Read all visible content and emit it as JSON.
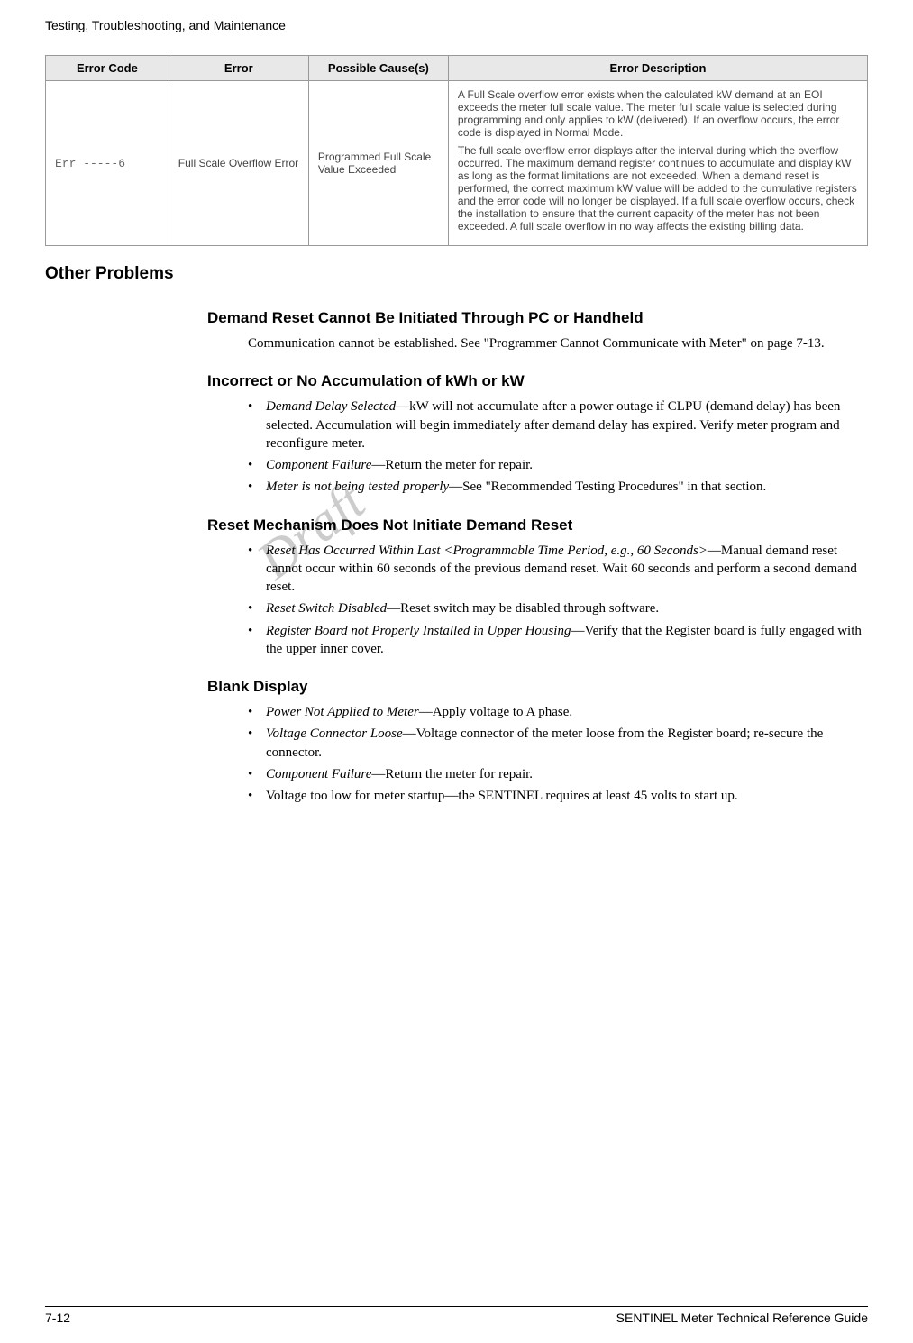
{
  "running_header": "Testing, Troubleshooting, and Maintenance",
  "table": {
    "headers": [
      "Error Code",
      "Error",
      "Possible Cause(s)",
      "Error Description"
    ],
    "row": {
      "code": "Err -----6",
      "error": "Full Scale Overflow Error",
      "cause": "Programmed Full Scale Value Exceeded",
      "desc_p1": "A Full Scale overflow error exists when the calculated kW demand at an EOI exceeds the meter full scale value. The meter full scale value is selected during programming and only applies to kW (delivered). If an overflow occurs, the error code is displayed in Normal Mode.",
      "desc_p2": "The full scale overflow error displays after the interval during which the overflow occurred. The maximum demand register continues to accumulate and display kW as long as the format limitations are not exceeded. When a demand reset is performed, the correct maximum kW value will be added to the cumulative registers and the error code will no longer be displayed. If a full scale overflow occurs, check the installation to ensure that the current capacity of the meter has not been exceeded. A full scale overflow in no way affects the existing billing data."
    }
  },
  "h2_other": "Other Problems",
  "sec1": {
    "heading": "Demand Reset Cannot Be Initiated Through PC or Handheld",
    "para": "Communication cannot be established. See \"Programmer Cannot Communicate with Meter\" on page 7-13."
  },
  "sec2": {
    "heading": "Incorrect or No Accumulation of kWh or kW",
    "b1_em": "Demand Delay Selected",
    "b1_rest": "—kW will not accumulate after a power outage if CLPU (demand delay) has been selected. Accumulation will begin immediately after demand delay has expired. Verify meter program and reconfigure meter.",
    "b2_em": "Component Failure",
    "b2_rest": "—Return the meter for repair.",
    "b3_em": "Meter is not being tested properly",
    "b3_rest": "—See \"Recommended Testing Procedures\" in that section."
  },
  "sec3": {
    "heading": "Reset Mechanism Does Not Initiate Demand Reset",
    "b1_em": "Reset Has Occurred Within Last <Programmable Time Period, e.g., 60 Seconds>",
    "b1_rest": "—Manual demand reset cannot occur within 60 seconds of the previous demand reset. Wait 60 seconds and perform a second demand reset.",
    "b2_em": "Reset Switch Disabled",
    "b2_rest": "—Reset switch may be disabled through software.",
    "b3_em": "Register Board not Properly Installed in Upper Housing",
    "b3_rest": "—Verify that the Register board is fully engaged with the upper inner cover."
  },
  "sec4": {
    "heading": "Blank Display",
    "b1_em": "Power Not Applied to Meter",
    "b1_rest": "—Apply voltage to A phase.",
    "b2_em": "Voltage Connector Loose",
    "b2_rest": "—Voltage connector of the meter loose from the Register board; re-secure the connector.",
    "b3_em": "Component Failure",
    "b3_rest": "—Return the meter for repair.",
    "b4": "Voltage too low for meter startup—the SENTINEL requires at least 45 volts to start up."
  },
  "watermark": "Draft",
  "footer_left": "7-12",
  "footer_right": "SENTINEL Meter Technical Reference Guide"
}
